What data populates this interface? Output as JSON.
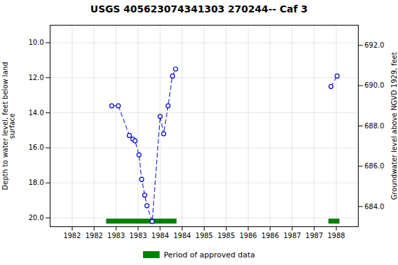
{
  "chart_data": {
    "type": "line",
    "title": "USGS 405623074341303 270244-- Caf 3",
    "ylabel": "Depth to water level, feet below land\nsurface",
    "y2label": "Groundwater level above NGVD 1929, feet",
    "xlim": [
      1981.5,
      1988.5
    ],
    "ylim": [
      20.5,
      9.0
    ],
    "y2lim": [
      683.0,
      693.0
    ],
    "xticks": [
      1982,
      {
        "value": 1982.5,
        "label": "1982"
      },
      1983,
      {
        "value": 1983.5,
        "label": "1983"
      },
      1984,
      {
        "value": 1984.5,
        "label": "1984"
      },
      1985,
      {
        "value": 1985.5,
        "label": "1985"
      },
      1986,
      {
        "value": 1986.5,
        "label": "1986"
      },
      1987,
      {
        "value": 1987.5,
        "label": "1987"
      },
      1988
    ],
    "yticks": [
      {
        "value": 10,
        "label": "10.0"
      },
      {
        "value": 12,
        "label": "12.0"
      },
      {
        "value": 14,
        "label": "14.0"
      },
      {
        "value": 16,
        "label": "16.0"
      },
      {
        "value": 18,
        "label": "18.0"
      },
      {
        "value": 20,
        "label": "20.0"
      }
    ],
    "y2ticks": [
      {
        "value": 684,
        "label": "684.0"
      },
      {
        "value": 686,
        "label": "686.0"
      },
      {
        "value": 688,
        "label": "688.0"
      },
      {
        "value": 690,
        "label": "690.0"
      },
      {
        "value": 692,
        "label": "692.0"
      }
    ],
    "series": [
      {
        "color": "#0000cc",
        "marker": "circle",
        "line_style": "dashed",
        "x": [
          1982.9,
          1983.05,
          1983.3,
          1983.38,
          1983.43,
          1983.52,
          1983.58,
          1983.65,
          1983.7,
          1983.82,
          1984.0,
          1984.08,
          1984.18,
          1984.28,
          1984.35
        ],
        "values": [
          13.6,
          13.6,
          15.3,
          15.5,
          15.6,
          16.4,
          17.8,
          18.7,
          19.3,
          20.2,
          14.2,
          15.2,
          13.6,
          11.9,
          11.5
        ]
      },
      {
        "color": "#0000cc",
        "marker": "circle",
        "line_style": "dashed",
        "x": [
          1987.88,
          1988.02
        ],
        "values": [
          12.5,
          11.9
        ]
      }
    ],
    "approved_periods": {
      "name": "Period of approved data",
      "color": "#008000",
      "y": 20.2,
      "height": 0.28,
      "ranges": [
        [
          1982.78,
          1984.38
        ],
        [
          1987.83,
          1988.08
        ]
      ]
    },
    "grid": true,
    "legend": "bottom"
  }
}
